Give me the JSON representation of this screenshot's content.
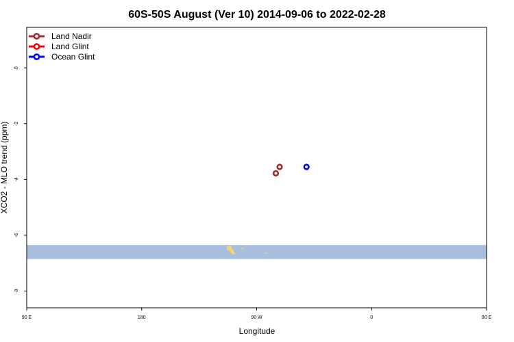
{
  "chart_data": {
    "type": "scatter",
    "title": "60S-50S August (Ver 10)   2014-09-06 to 2022-02-28",
    "xlabel": "Longitude",
    "ylabel": "XCO2 - MLO trend (ppm)",
    "xlim": [
      90,
      450
    ],
    "ylim": [
      -8.6,
      1.45
    ],
    "x_ticks": [
      {
        "value": 90,
        "label": "90 E"
      },
      {
        "value": 180,
        "label": "180"
      },
      {
        "value": 270,
        "label": "90 W"
      },
      {
        "value": 360,
        "label": "0"
      },
      {
        "value": 450,
        "label": "90 E"
      },
      {
        "value": 540,
        "label": "180"
      }
    ],
    "y_ticks": [
      {
        "value": 0,
        "label": "0"
      },
      {
        "value": -2,
        "label": "-2"
      },
      {
        "value": -4,
        "label": "-4"
      },
      {
        "value": -6,
        "label": "-6"
      },
      {
        "value": -8,
        "label": "-8"
      }
    ],
    "grid": false,
    "legend_position": "top-left",
    "latitude_band": {
      "color": "#a7bedc",
      "y_range": [
        -6.85,
        -6.35
      ]
    },
    "land_color": "#f5d27a",
    "series": [
      {
        "name": "Land Nadir",
        "color": "#a52a2a",
        "points": [
          {
            "x": 288,
            "y": -3.55
          },
          {
            "x": 285,
            "y": -3.78
          }
        ]
      },
      {
        "name": "Land Glint",
        "color": "#ff0000",
        "points": []
      },
      {
        "name": "Ocean Glint",
        "color": "#0000ff",
        "points": [
          {
            "x": 309,
            "y": -3.55
          }
        ]
      }
    ]
  }
}
